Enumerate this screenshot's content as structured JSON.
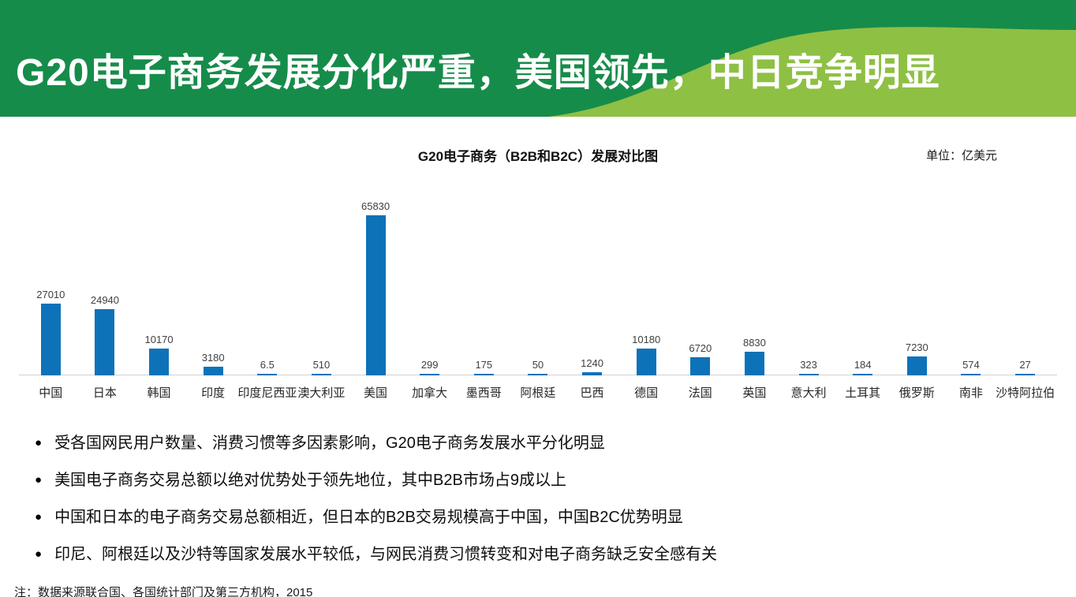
{
  "header": {
    "title": "G20电子商务发展分化严重，美国领先，中日竞争明显",
    "bg_color": "#168c4a",
    "accent_color": "#8ec044"
  },
  "chart": {
    "title": "G20电子商务（B2B和B2C）发展对比图",
    "unit_label": "单位：亿美元"
  },
  "chart_data": {
    "type": "bar",
    "title": "G20电子商务（B2B和B2C）发展对比图",
    "unit": "亿美元",
    "categories": [
      "中国",
      "日本",
      "韩国",
      "印度",
      "印度尼西亚",
      "澳大利亚",
      "美国",
      "加拿大",
      "墨西哥",
      "阿根廷",
      "巴西",
      "德国",
      "法国",
      "英国",
      "意大利",
      "土耳其",
      "俄罗斯",
      "南非",
      "沙特阿拉伯"
    ],
    "values": [
      27010,
      24940,
      10170,
      3180,
      6.5,
      510,
      65830,
      299,
      175,
      50,
      1240,
      10180,
      6720,
      8830,
      323,
      184,
      7230,
      574,
      27
    ],
    "value_labels": [
      "27010",
      "24940",
      "10170",
      "3180",
      "6.5",
      "510",
      "65830",
      "299",
      "175",
      "50",
      "1240",
      "10180",
      "6720",
      "8830",
      "323",
      "184",
      "7230",
      "574",
      "27"
    ],
    "bar_color": "#0e72b9",
    "ylim": [
      0,
      65830
    ],
    "grid": false,
    "legend": false,
    "xlabel": "",
    "ylabel": ""
  },
  "bullet_glyph": "●",
  "bullets": [
    "受各国网民用户数量、消费习惯等多因素影响，G20电子商务发展水平分化明显",
    "美国电子商务交易总额以绝对优势处于领先地位，其中B2B市场占9成以上",
    "中国和日本的电子商务交易总额相近，但日本的B2B交易规模高于中国，中国B2C优势明显",
    "印尼、阿根廷以及沙特等国家发展水平较低，与网民消费习惯转变和对电子商务缺乏安全感有关"
  ],
  "note": "注：数据来源联合国、各国统计部门及第三方机构，2015"
}
